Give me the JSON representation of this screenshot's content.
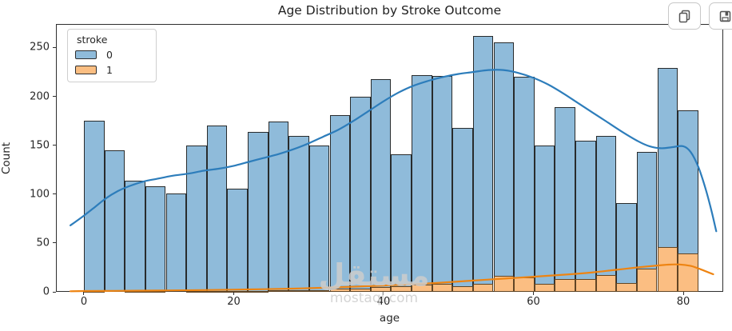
{
  "toolbar": {
    "buttons": [
      {
        "name": "copy-output-button",
        "icon": "copy-icon"
      },
      {
        "name": "save-output-button",
        "icon": "save-icon"
      }
    ]
  },
  "watermark": {
    "arabic": "مستقل",
    "domain": "mostaql.com"
  },
  "chart_data": {
    "type": "bar",
    "subtype": "histogram-with-kde",
    "title": "Age Distribution by Stroke Outcome",
    "xlabel": "age",
    "ylabel": "Count",
    "xlim": [
      -3.733,
      85.333
    ],
    "ylim": [
      0,
      274.14
    ],
    "x_ticks": [
      0,
      20,
      40,
      60,
      80
    ],
    "y_ticks": [
      0,
      50,
      100,
      150,
      200,
      250
    ],
    "grid": false,
    "legend": {
      "position": "upper-left",
      "title": "stroke",
      "entries": [
        {
          "label": "0",
          "color": "#8fbbda"
        },
        {
          "label": "1",
          "color": "#fbbe82"
        }
      ]
    },
    "bins": {
      "start": 0,
      "end": 82,
      "count": 30,
      "width": 2.7333
    },
    "series": [
      {
        "name": "0",
        "fill": "#8fbbda",
        "values": [
          175,
          145,
          114,
          108,
          101,
          150,
          170,
          106,
          164,
          174,
          160,
          150,
          181,
          200,
          218,
          141,
          222,
          221,
          168,
          262,
          255,
          220,
          150,
          189,
          155,
          160,
          91,
          143,
          229,
          186
        ]
      },
      {
        "name": "1",
        "fill": "#fbbe82",
        "values": [
          1,
          0,
          1,
          1,
          0,
          1,
          1,
          1,
          1,
          2,
          2,
          2,
          3,
          3,
          5,
          6,
          7,
          8,
          6,
          8,
          16,
          15,
          8,
          13,
          13,
          17,
          9,
          24,
          46,
          39
        ]
      }
    ],
    "kde": [
      {
        "name": "0",
        "color": "#2d7dbb",
        "points": [
          [
            -1.8,
            68
          ],
          [
            0,
            78
          ],
          [
            1.5,
            87
          ],
          [
            3,
            96
          ],
          [
            4.5,
            103
          ],
          [
            6,
            108
          ],
          [
            8,
            113
          ],
          [
            10,
            116
          ],
          [
            12,
            119
          ],
          [
            14,
            121
          ],
          [
            16,
            124
          ],
          [
            18,
            126
          ],
          [
            20,
            129
          ],
          [
            22,
            133
          ],
          [
            24,
            137
          ],
          [
            26,
            141
          ],
          [
            28,
            146
          ],
          [
            30,
            152
          ],
          [
            32,
            159
          ],
          [
            34,
            166
          ],
          [
            36,
            175
          ],
          [
            38,
            185
          ],
          [
            40,
            195
          ],
          [
            42,
            204
          ],
          [
            44,
            211
          ],
          [
            46,
            216
          ],
          [
            48,
            220
          ],
          [
            50,
            223
          ],
          [
            52,
            225
          ],
          [
            54,
            227
          ],
          [
            56,
            227
          ],
          [
            58,
            224
          ],
          [
            60,
            219
          ],
          [
            62,
            212
          ],
          [
            64,
            203
          ],
          [
            66,
            193
          ],
          [
            68,
            183
          ],
          [
            70,
            173
          ],
          [
            72,
            163
          ],
          [
            74,
            154
          ],
          [
            75.5,
            149
          ],
          [
            77,
            147
          ],
          [
            78.5,
            148
          ],
          [
            80,
            149
          ],
          [
            81,
            143
          ],
          [
            82,
            128
          ],
          [
            83,
            105
          ],
          [
            83.8,
            82
          ],
          [
            84.4,
            62
          ]
        ]
      },
      {
        "name": "1",
        "color": "#ee8412",
        "points": [
          [
            -1.8,
            0.6
          ],
          [
            0,
            0.8
          ],
          [
            4,
            1
          ],
          [
            8,
            1.2
          ],
          [
            12,
            1.5
          ],
          [
            16,
            1.8
          ],
          [
            20,
            2.2
          ],
          [
            24,
            2.7
          ],
          [
            28,
            3.3
          ],
          [
            32,
            4.2
          ],
          [
            36,
            5.2
          ],
          [
            40,
            6.5
          ],
          [
            44,
            7.8
          ],
          [
            48,
            9.5
          ],
          [
            52,
            11.5
          ],
          [
            56,
            13.5
          ],
          [
            60,
            15.5
          ],
          [
            64,
            17.5
          ],
          [
            68,
            20
          ],
          [
            71,
            22.5
          ],
          [
            74,
            25
          ],
          [
            76,
            26.5
          ],
          [
            78,
            27.8
          ],
          [
            79.5,
            28
          ],
          [
            81,
            26.5
          ],
          [
            82,
            24
          ],
          [
            83,
            21
          ],
          [
            84,
            18
          ]
        ]
      }
    ]
  }
}
